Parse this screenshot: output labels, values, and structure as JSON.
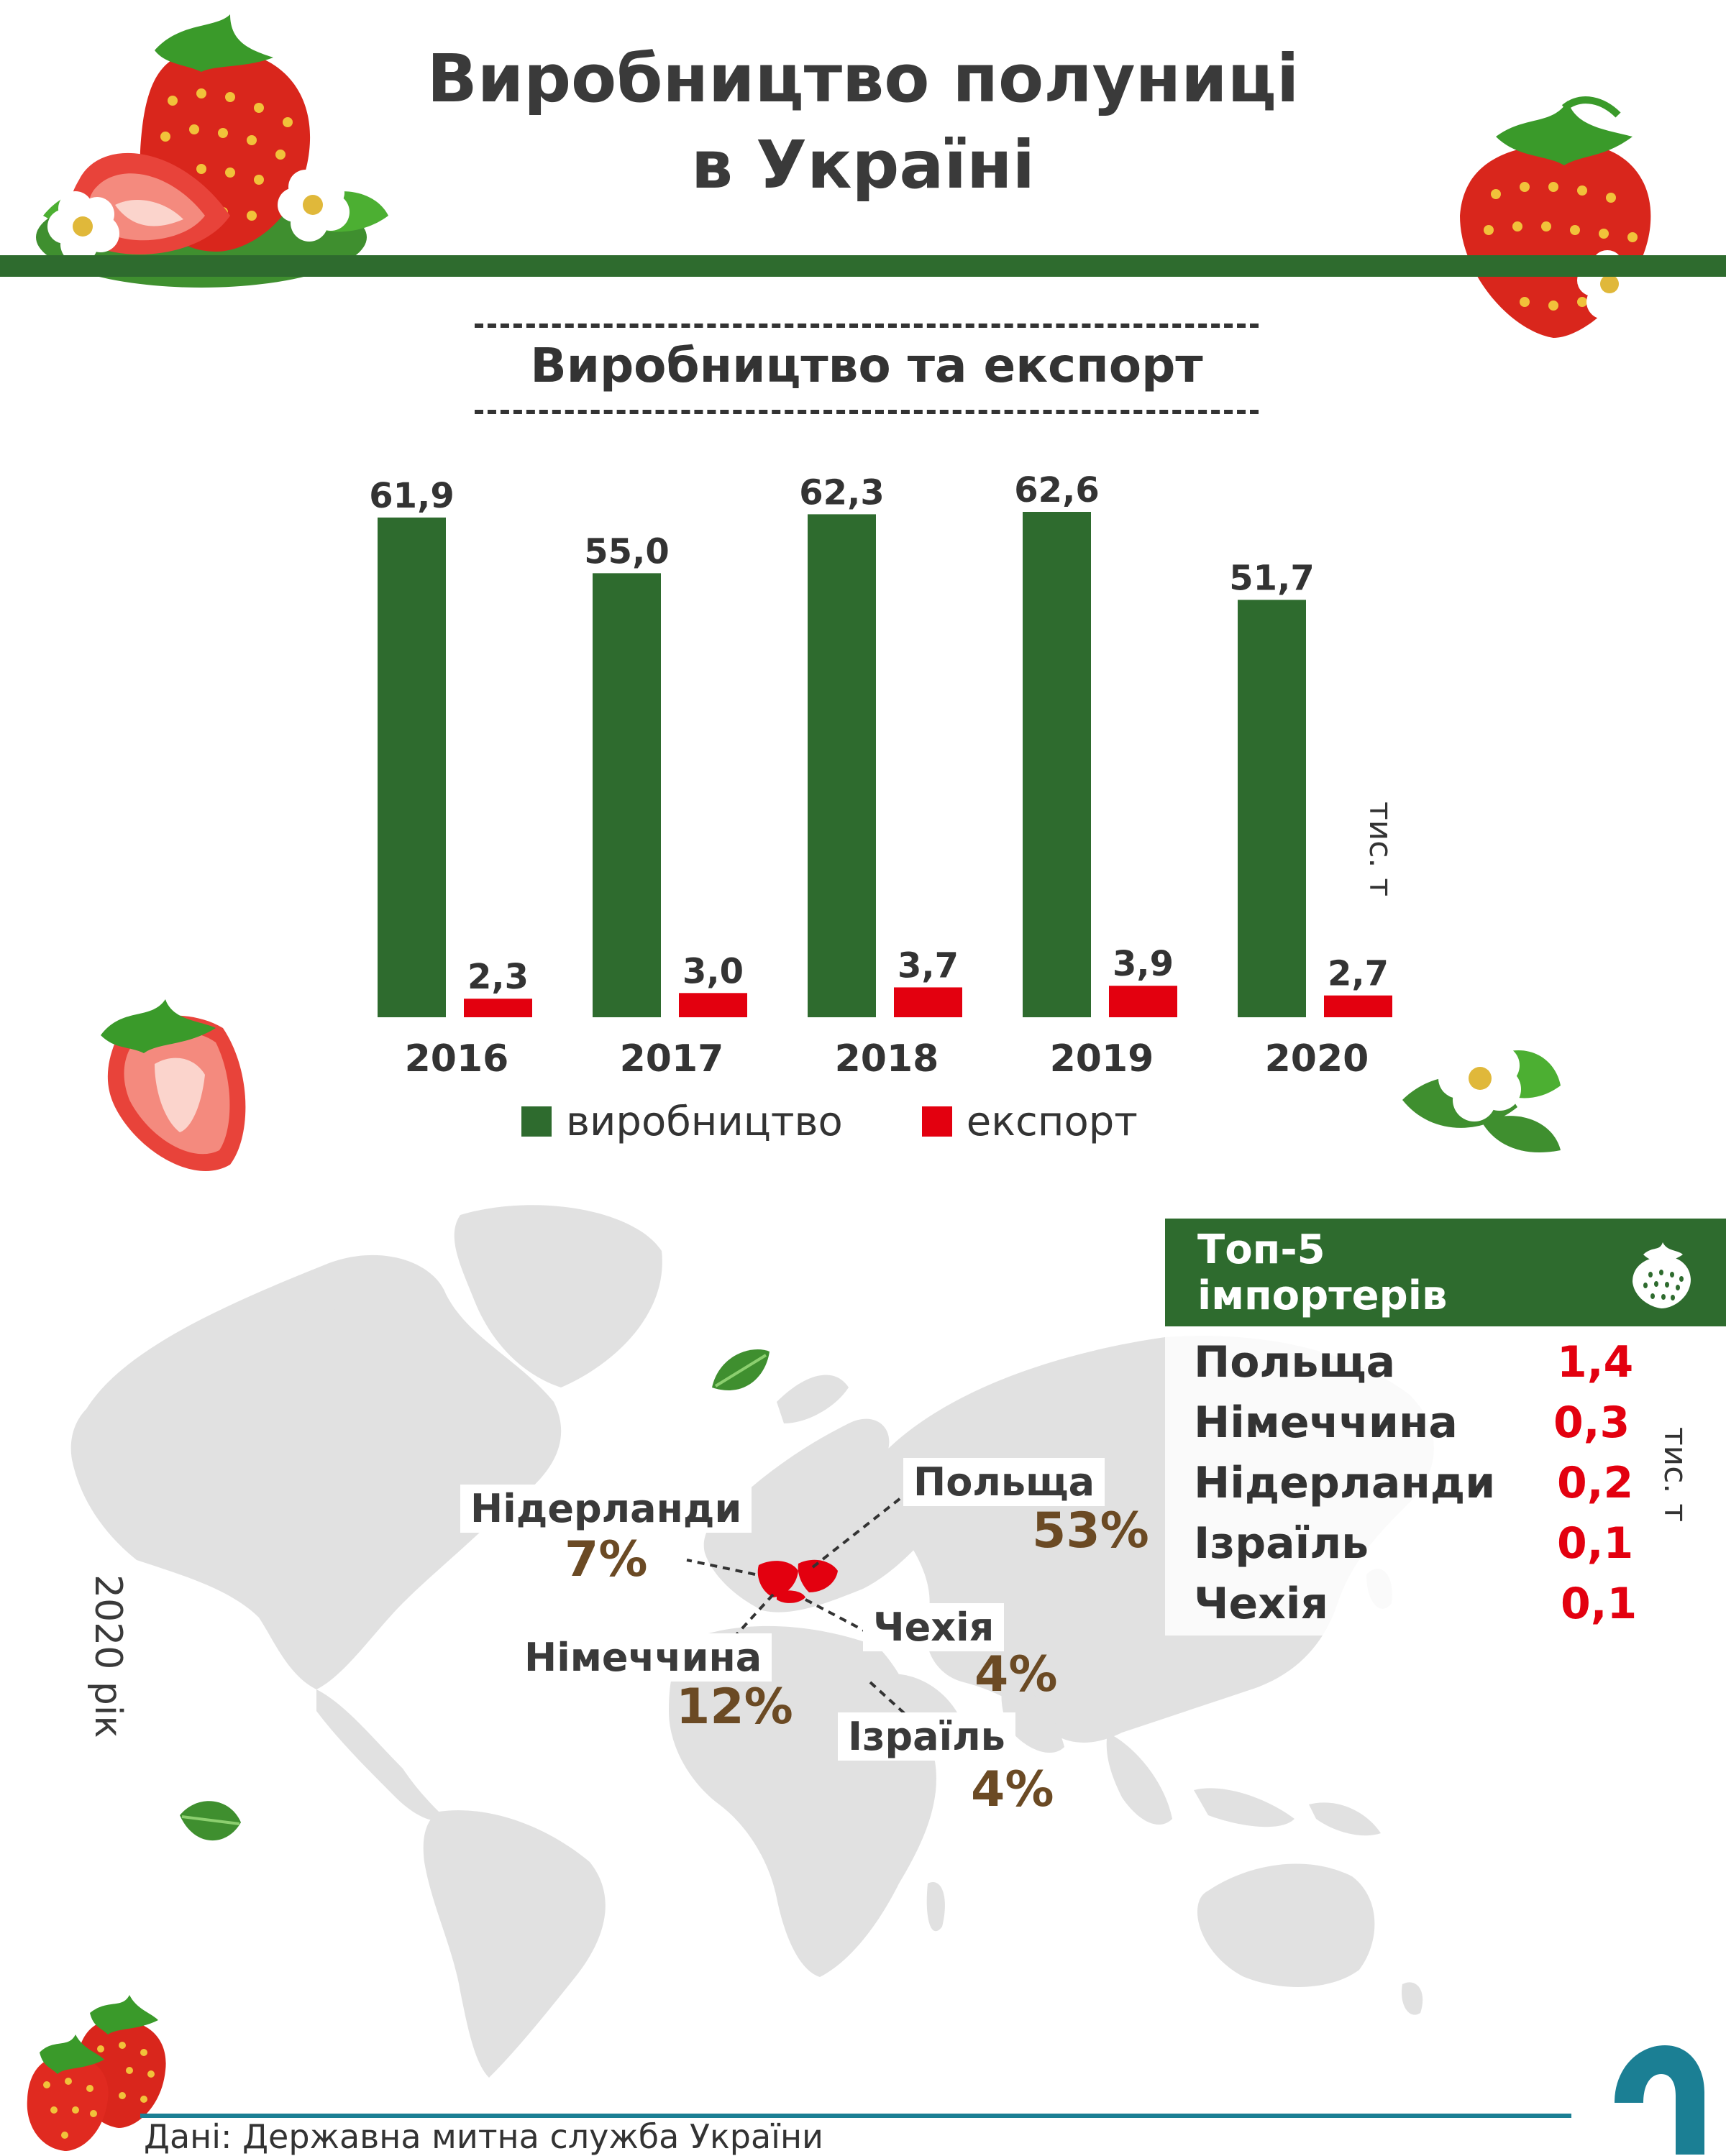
{
  "header": {
    "title_line1": "Виробництво полуниці",
    "title_line2": "в Україні"
  },
  "section": {
    "title": "Виробництво та експорт"
  },
  "chart_data": {
    "type": "bar",
    "title": "Виробництво та експорт",
    "categories": [
      "2016",
      "2017",
      "2018",
      "2019",
      "2020"
    ],
    "series": [
      {
        "name": "виробництво",
        "color": "#2e6b2e",
        "values": [
          61.9,
          55.0,
          62.3,
          62.6,
          51.7
        ],
        "labels": [
          "61,9",
          "55,0",
          "62,3",
          "62,6",
          "51,7"
        ]
      },
      {
        "name": "експорт",
        "color": "#e3000f",
        "values": [
          2.3,
          3.0,
          3.7,
          3.9,
          2.7
        ],
        "labels": [
          "2,3",
          "3,0",
          "3,7",
          "3,9",
          "2,7"
        ]
      }
    ],
    "ylabel": "тис. т",
    "ylim": [
      0,
      62.6
    ],
    "grid": false,
    "legend": "bottom"
  },
  "map": {
    "year_label": "2020 рік",
    "shares": [
      {
        "country": "Польща",
        "percent": "53%"
      },
      {
        "country": "Нідерланди",
        "percent": "7%"
      },
      {
        "country": "Німеччина",
        "percent": "12%"
      },
      {
        "country": "Чехія",
        "percent": "4%"
      },
      {
        "country": "Ізраїль",
        "percent": "4%"
      }
    ]
  },
  "top5": {
    "title_line1": "Топ-5",
    "title_line2": "імпортерів",
    "icon": "strawberry-icon",
    "units": "тис. т",
    "rows": [
      {
        "country": "Польща",
        "value": "1,4"
      },
      {
        "country": "Німеччина",
        "value": "0,3"
      },
      {
        "country": "Нідерланди",
        "value": "0,2"
      },
      {
        "country": "Ізраїль",
        "value": "0,1"
      },
      {
        "country": "Чехія",
        "value": "0,1"
      }
    ]
  },
  "footer": {
    "source": "Дані: Державна митна служба України"
  }
}
